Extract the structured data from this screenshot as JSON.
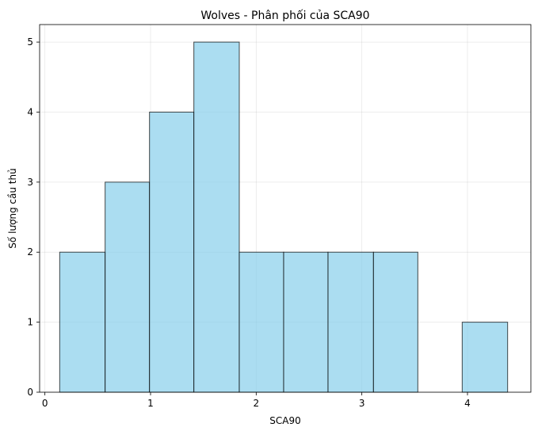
{
  "chart_data": {
    "type": "bar",
    "title": "Wolves - Phân phối của SCA90",
    "xlabel": "SCA90",
    "ylabel": "Số lượng cầu thủ",
    "xlim": [
      -0.05,
      4.6
    ],
    "ylim": [
      0,
      5.25
    ],
    "xticks": [
      0,
      1,
      2,
      3,
      4
    ],
    "yticks": [
      0,
      1,
      2,
      3,
      4,
      5
    ],
    "grid": true,
    "bins": [
      {
        "x0": 0.14,
        "x1": 0.57,
        "count": 2
      },
      {
        "x0": 0.57,
        "x1": 0.99,
        "count": 3
      },
      {
        "x0": 0.99,
        "x1": 1.41,
        "count": 4
      },
      {
        "x0": 1.41,
        "x1": 1.84,
        "count": 5
      },
      {
        "x0": 1.84,
        "x1": 2.26,
        "count": 2
      },
      {
        "x0": 2.26,
        "x1": 2.68,
        "count": 2
      },
      {
        "x0": 2.68,
        "x1": 3.11,
        "count": 2
      },
      {
        "x0": 3.11,
        "x1": 3.53,
        "count": 2
      },
      {
        "x0": 3.53,
        "x1": 3.95,
        "count": 0
      },
      {
        "x0": 3.95,
        "x1": 4.38,
        "count": 1
      }
    ],
    "colors": {
      "bar_fill": "#87ceeb",
      "bar_edge": "#000000"
    }
  }
}
